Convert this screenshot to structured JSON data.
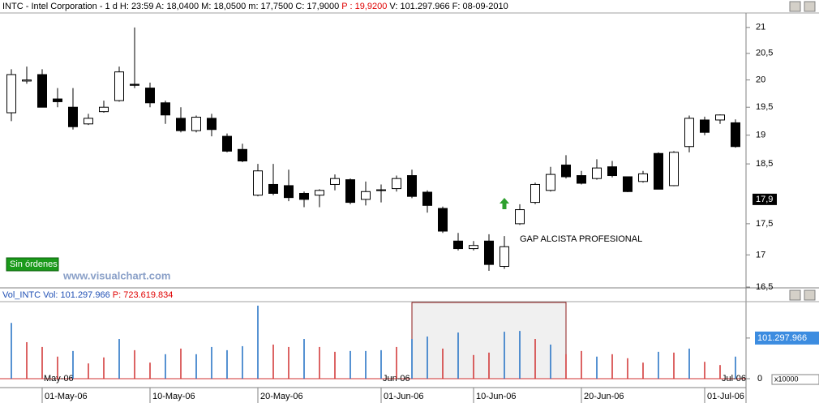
{
  "chart_data": [
    {
      "type": "candlestick",
      "title": "INTC - Intel Corporation - 1 d H: 23:59 A: 18,0400 M: 18,0500 m: 17,7500 C: 17,9000",
      "title_highlight": "P : 19,9200",
      "title_tail": "V: 101.297.966 F: 08-09-2010",
      "annotation": "GAP ALCISTA PROFESIONAL",
      "status": "Sin órdenes",
      "watermark": "www.visualchart.com",
      "categories": [
        null,
        null,
        "01-May-06",
        null,
        null,
        null,
        null,
        null,
        null,
        "10-May-06",
        null,
        null,
        null,
        null,
        null,
        null,
        "20-May-06",
        null,
        null,
        null,
        null,
        null,
        null,
        null,
        "01-Jun-06",
        null,
        null,
        null,
        null,
        null,
        "10-Jun-06",
        null,
        null,
        null,
        null,
        null,
        null,
        "20-Jun-06",
        null,
        null,
        null,
        null,
        null,
        null,
        null,
        "01-Jul-06",
        null,
        null
      ],
      "open": [
        19.4,
        19.98,
        20.1,
        19.65,
        19.5,
        19.2,
        19.42,
        19.62,
        19.92,
        19.85,
        19.58,
        19.3,
        19.08,
        19.3,
        18.98,
        18.75,
        17.97,
        18.15,
        18.13,
        18.0,
        17.97,
        18.15,
        18.23,
        17.9,
        18.05,
        18.08,
        18.3,
        18.02,
        17.75,
        17.22,
        17.1,
        17.22,
        16.82,
        17.5,
        17.85,
        18.05,
        18.48,
        18.3,
        18.25,
        18.45,
        18.28,
        18.2,
        18.68,
        18.13,
        18.8,
        19.27,
        19.27,
        19.22
      ],
      "high": [
        20.2,
        20.25,
        20.2,
        19.85,
        19.85,
        19.38,
        19.62,
        20.25,
        21.0,
        19.95,
        19.62,
        19.5,
        19.35,
        19.38,
        19.03,
        18.85,
        18.5,
        18.5,
        18.4,
        18.03,
        18.07,
        18.32,
        18.25,
        18.2,
        18.15,
        18.3,
        18.4,
        18.05,
        17.78,
        17.35,
        17.22,
        17.33,
        17.3,
        17.82,
        18.18,
        18.45,
        18.65,
        18.38,
        18.58,
        18.55,
        18.28,
        18.38,
        18.7,
        18.72,
        19.35,
        19.33,
        19.37,
        19.28
      ],
      "low": [
        19.25,
        19.93,
        19.5,
        19.5,
        19.1,
        19.18,
        19.4,
        19.6,
        19.85,
        19.5,
        19.2,
        19.05,
        19.05,
        18.98,
        18.7,
        18.53,
        17.95,
        17.97,
        17.87,
        17.77,
        17.77,
        18.05,
        17.82,
        17.8,
        17.85,
        18.03,
        17.92,
        17.68,
        17.35,
        17.07,
        17.07,
        16.75,
        16.78,
        17.48,
        17.82,
        18.03,
        18.25,
        18.15,
        18.23,
        18.27,
        18.02,
        18.18,
        18.07,
        18.12,
        18.7,
        19.0,
        19.2,
        18.78
      ],
      "close": [
        20.1,
        20.0,
        19.5,
        19.6,
        19.15,
        19.3,
        19.5,
        20.15,
        19.9,
        19.58,
        19.36,
        19.08,
        19.32,
        19.1,
        18.72,
        18.55,
        18.38,
        18.0,
        17.93,
        17.9,
        18.05,
        18.25,
        17.85,
        18.03,
        18.06,
        18.25,
        17.95,
        17.8,
        17.38,
        17.1,
        17.15,
        16.85,
        17.13,
        17.73,
        18.15,
        18.32,
        18.28,
        18.17,
        18.43,
        18.3,
        18.03,
        18.33,
        18.07,
        18.7,
        19.3,
        19.05,
        19.36,
        18.8
      ],
      "up_color": "#ffffff",
      "down_color": "#000000",
      "log_scale": true,
      "ylim": [
        16.5,
        21.3
      ],
      "yticks": [
        {
          "value": 16.5,
          "label": "16,5"
        },
        17,
        {
          "value": 17.5,
          "label": "17,5"
        },
        {
          "value": 18.5,
          "label": "18,5"
        },
        19,
        {
          "value": 19.5,
          "label": "19,5"
        },
        20,
        {
          "value": 20.5,
          "label": "20,5"
        },
        21
      ],
      "last_price": {
        "value": 17.9,
        "label": "17,9"
      }
    },
    {
      "type": "bar",
      "title": "Vol_INTC Vol: 101.297.966",
      "title_highlight": "P: 723.619.834",
      "unit_label": "x10000",
      "categories": [
        null,
        null,
        "May-06",
        null,
        null,
        null,
        null,
        null,
        null,
        null,
        null,
        null,
        null,
        null,
        null,
        null,
        null,
        null,
        null,
        null,
        null,
        null,
        null,
        null,
        "Jun-06",
        null,
        null,
        null,
        null,
        null,
        null,
        null,
        null,
        null,
        null,
        null,
        null,
        null,
        null,
        null,
        null,
        null,
        null,
        null,
        null,
        null,
        "Jul-06",
        null
      ],
      "values": [
        139000000,
        91000000,
        79000000,
        55000000,
        69000000,
        38000000,
        53000000,
        99000000,
        71000000,
        40000000,
        61000000,
        75000000,
        61000000,
        79000000,
        71000000,
        81000000,
        182000000,
        85000000,
        79000000,
        99000000,
        79000000,
        67000000,
        69000000,
        69000000,
        71000000,
        79000000,
        99000000,
        105000000,
        75000000,
        115000000,
        59000000,
        65000000,
        117000000,
        119000000,
        99000000,
        85000000,
        61000000,
        69000000,
        55000000,
        61000000,
        51000000,
        40000000,
        67000000,
        65000000,
        75000000,
        42000000,
        34000000,
        55000000
      ],
      "colors": [
        "#1f6fc4",
        "#d03030",
        "#d03030",
        "#d03030",
        "#1f6fc4",
        "#d03030",
        "#d03030",
        "#1f6fc4",
        "#d03030",
        "#d03030",
        "#1f6fc4",
        "#d03030",
        "#1f6fc4",
        "#1f6fc4",
        "#1f6fc4",
        "#1f6fc4",
        "#1f6fc4",
        "#d03030",
        "#d03030",
        "#1f6fc4",
        "#d03030",
        "#d03030",
        "#1f6fc4",
        "#1f6fc4",
        "#1f6fc4",
        "#d03030",
        "#1f6fc4",
        "#1f6fc4",
        "#d03030",
        "#1f6fc4",
        "#d03030",
        "#d03030",
        "#1f6fc4",
        "#1f6fc4",
        "#d03030",
        "#1f6fc4",
        "#d03030",
        "#d03030",
        "#1f6fc4",
        "#d03030",
        "#d03030",
        "#d03030",
        "#1f6fc4",
        "#d03030",
        "#1f6fc4",
        "#d03030",
        "#d03030",
        "#1f6fc4"
      ],
      "ylim": [
        0,
        190000000
      ],
      "yticks": [
        0,
        {
          "value": 101297966,
          "label": "101.297.966"
        }
      ]
    }
  ]
}
